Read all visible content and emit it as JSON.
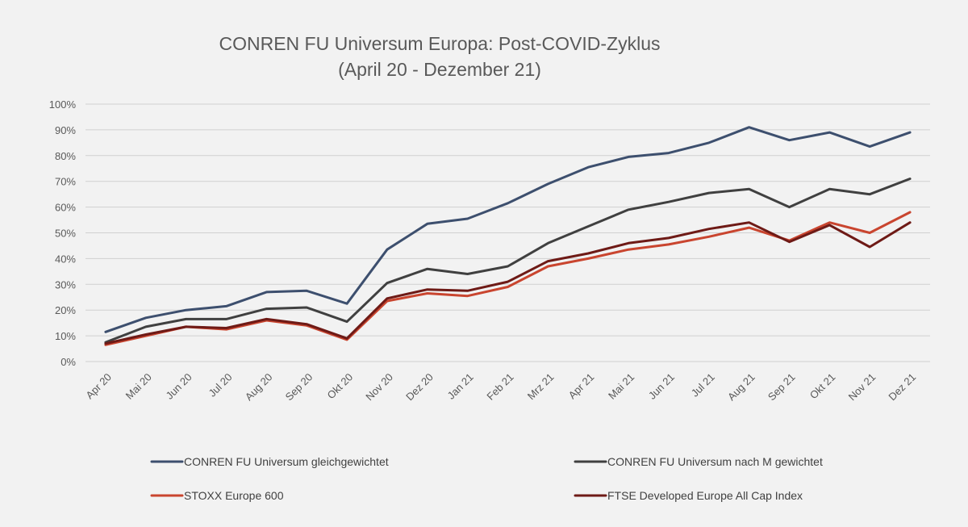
{
  "chart_data": {
    "type": "line",
    "title_lines": [
      "CONREN FU Universum Europa: Post-COVID-Zyklus",
      "(April 20 - Dezember 21)"
    ],
    "categories": [
      "Apr 20",
      "Mai 20",
      "Jun 20",
      "Jul 20",
      "Aug 20",
      "Sep 20",
      "Okt 20",
      "Nov 20",
      "Dez 20",
      "Jan 21",
      "Feb 21",
      "Mrz 21",
      "Apr 21",
      "Mai 21",
      "Jun 21",
      "Jul 21",
      "Aug 21",
      "Sep 21",
      "Okt 21",
      "Nov 21",
      "Dez 21"
    ],
    "y_ticks": [
      "0%",
      "10%",
      "20%",
      "30%",
      "40%",
      "50%",
      "60%",
      "70%",
      "80%",
      "90%",
      "100%"
    ],
    "ylim": [
      0,
      100
    ],
    "grid": true,
    "legend_position": "bottom",
    "series": [
      {
        "name": "CONREN FU Universum gleichgewichtet",
        "color": "#3d4f6e",
        "values": [
          11.5,
          17,
          20,
          21.5,
          27,
          27.5,
          22.5,
          43.5,
          53.5,
          55.5,
          61.5,
          69,
          75.5,
          79.5,
          81,
          85,
          91,
          86,
          89,
          83.5,
          89
        ]
      },
      {
        "name": "CONREN FU Universum nach M gewichtet",
        "color": "#404040",
        "values": [
          7.5,
          13.5,
          16.5,
          16.5,
          20.5,
          21,
          15.5,
          30.5,
          36,
          34,
          37,
          46,
          52.5,
          59,
          62,
          65.5,
          67,
          60,
          67,
          65,
          71
        ]
      },
      {
        "name": "STOXX Europe 600",
        "color": "#c9452f",
        "values": [
          6.5,
          10,
          13.5,
          12.5,
          16,
          14,
          8.5,
          23.5,
          26.5,
          25.5,
          29,
          37,
          40,
          43.5,
          45.5,
          48.5,
          52,
          47,
          54,
          50,
          58
        ]
      },
      {
        "name": "FTSE Developed Europe All Cap Index",
        "color": "#6e1a16",
        "values": [
          7,
          10.5,
          13.5,
          13,
          16.5,
          14.5,
          9,
          24.5,
          28,
          27.5,
          31,
          39,
          42,
          46,
          48,
          51.5,
          54,
          46.5,
          53,
          44.5,
          54
        ]
      }
    ]
  }
}
